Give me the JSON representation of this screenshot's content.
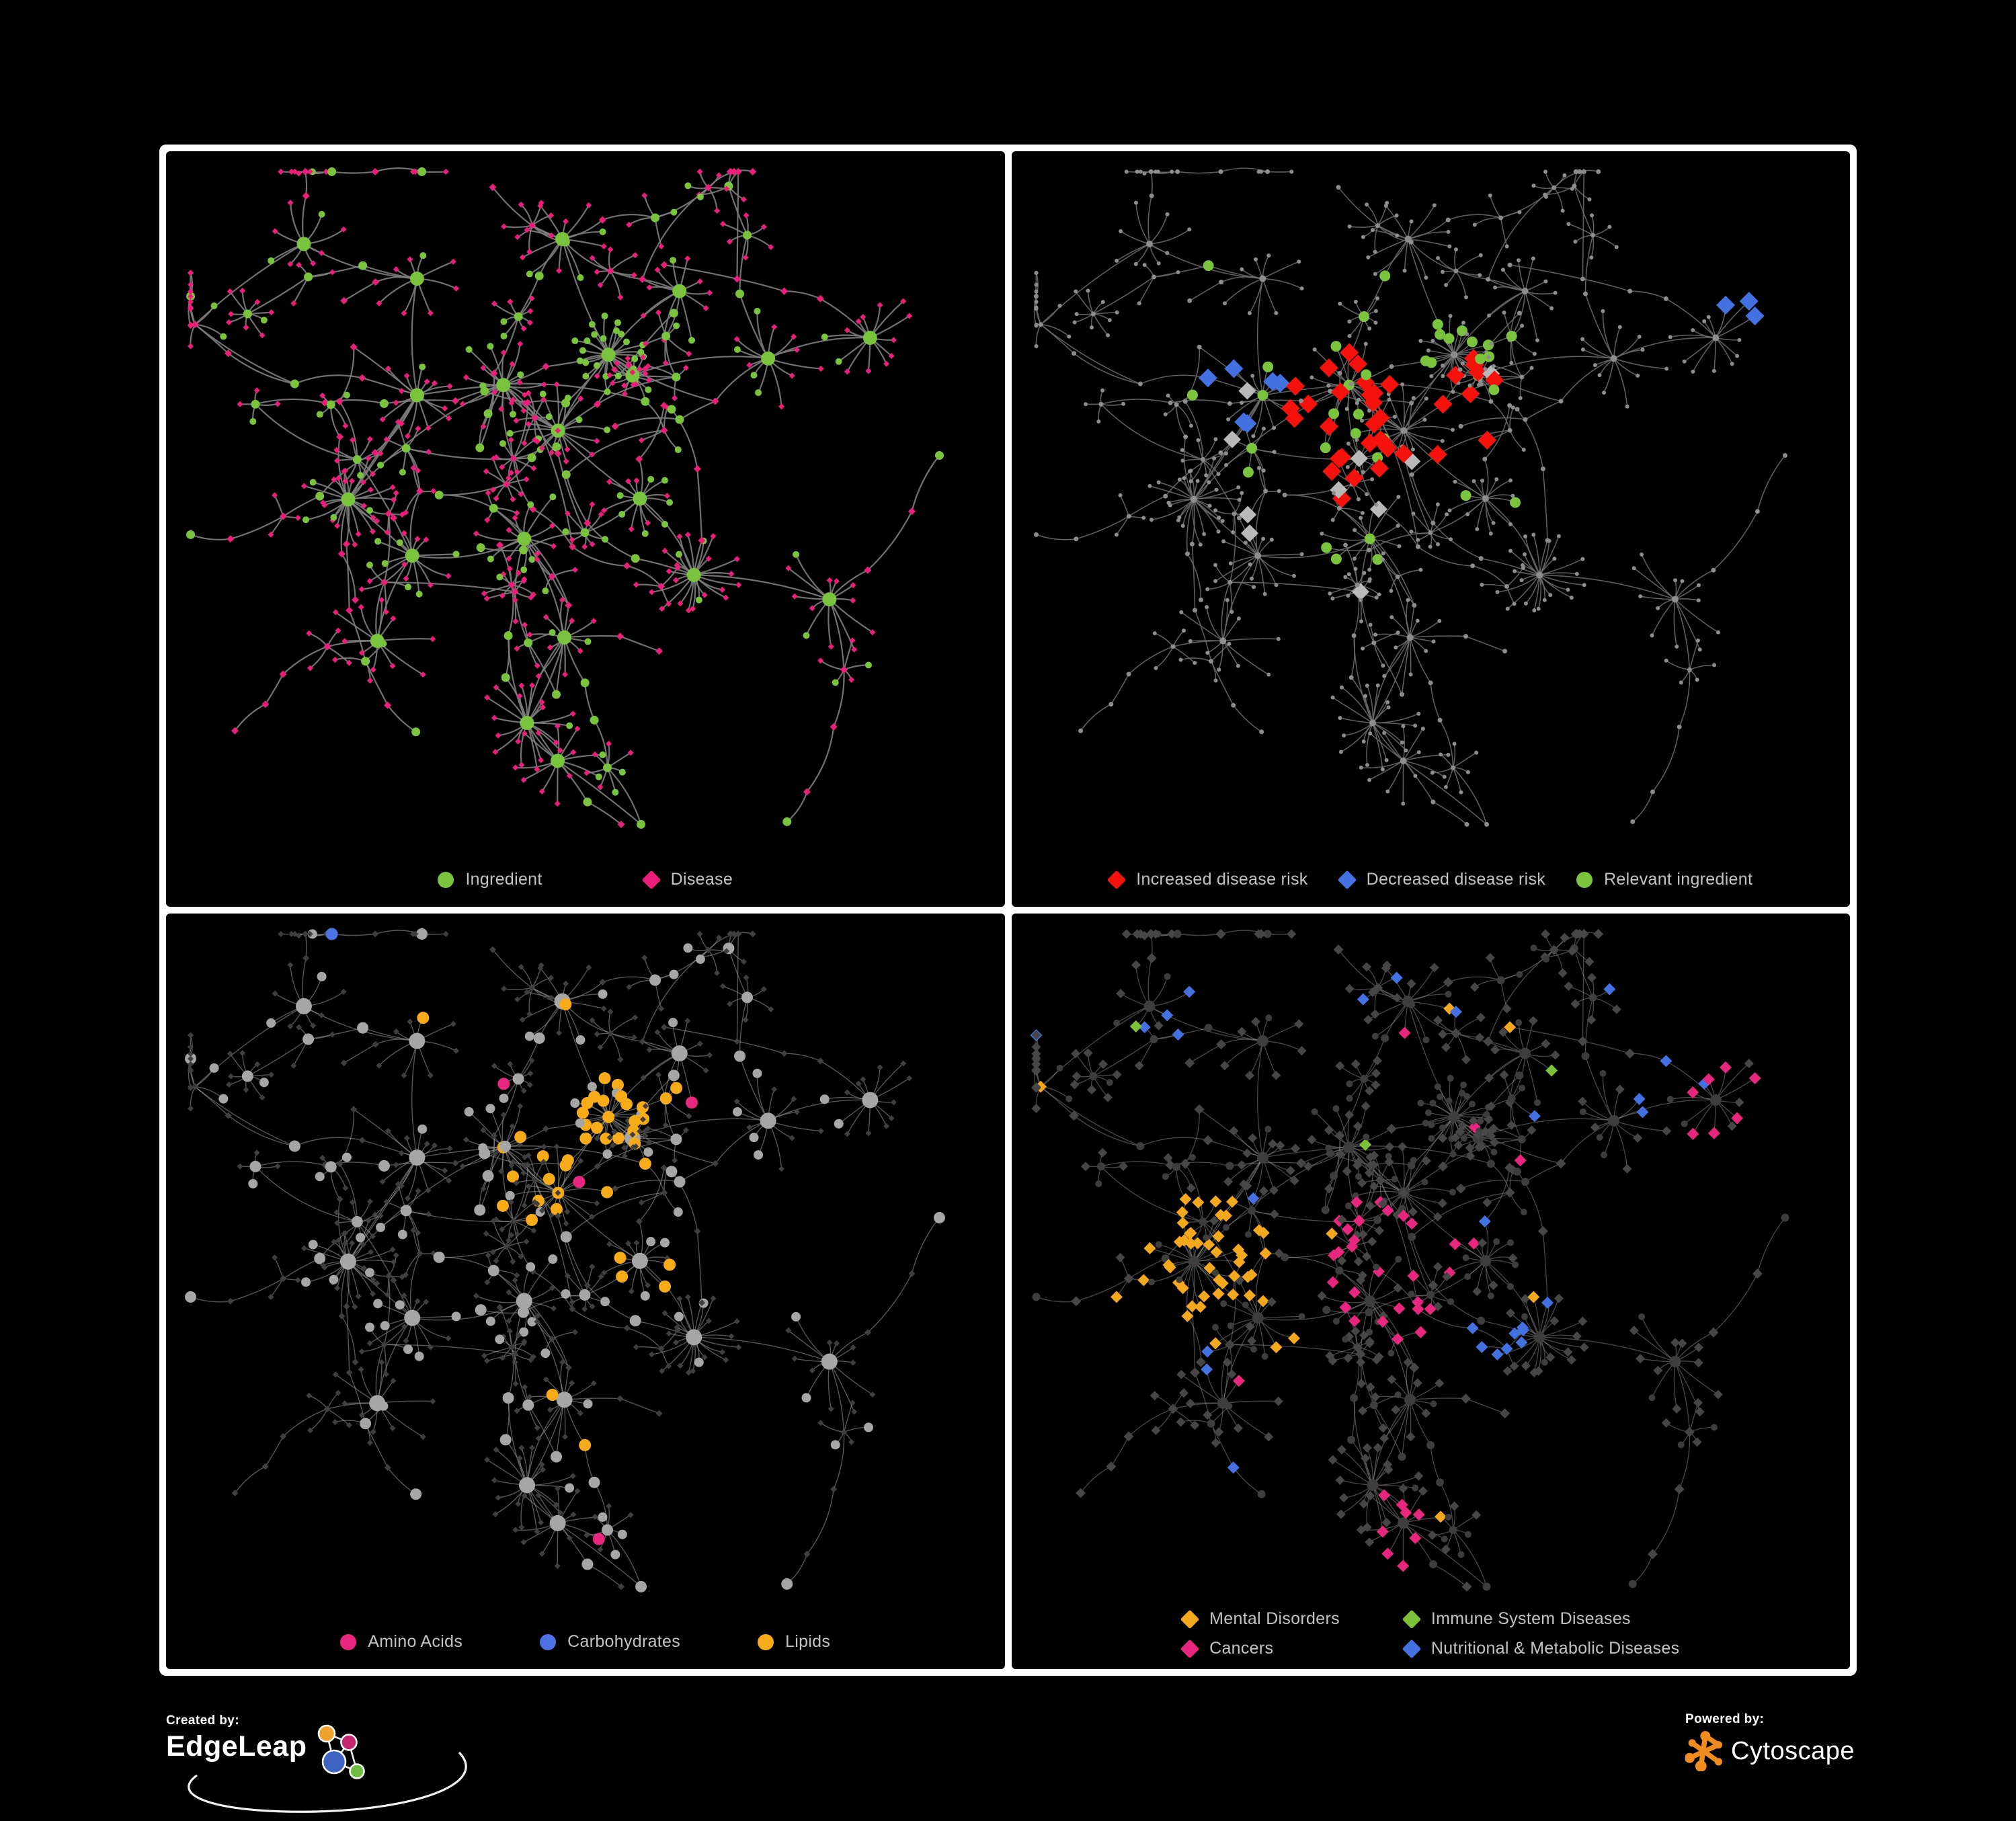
{
  "background": "#000000",
  "frame_color": "#ffffff",
  "panels": [
    {
      "id": "ingredient-disease",
      "legend_gap": 150,
      "columns": 1,
      "legend": [
        {
          "shape": "circle",
          "color": "#7ac43d",
          "label": "Ingredient"
        },
        {
          "shape": "diamond",
          "color": "#ec1e79",
          "label": "Disease"
        }
      ]
    },
    {
      "id": "disease-risk",
      "legend_gap": 46,
      "columns": 1,
      "legend": [
        {
          "shape": "diamond",
          "color": "#f5120c",
          "label": "Increased disease risk"
        },
        {
          "shape": "diamond",
          "color": "#4371e1",
          "label": "Decreased disease risk"
        },
        {
          "shape": "circle",
          "color": "#7ac43d",
          "label": "Relevant ingredient"
        }
      ]
    },
    {
      "id": "nutrient-classes",
      "legend_gap": 115,
      "columns": 1,
      "legend": [
        {
          "shape": "circle",
          "color": "#e9267d",
          "label": "Amino Acids"
        },
        {
          "shape": "circle",
          "color": "#4b72e3",
          "label": "Carbohydrates"
        },
        {
          "shape": "circle",
          "color": "#f8ab18",
          "label": "Lipids"
        }
      ]
    },
    {
      "id": "disease-categories",
      "legend_gap": 95,
      "columns": 2,
      "legend": [
        {
          "shape": "diamond",
          "color": "#f3a81e",
          "label": "Mental Disorders"
        },
        {
          "shape": "diamond",
          "color": "#7dc138",
          "label": "Immune System Diseases"
        },
        {
          "shape": "diamond",
          "color": "#e9267d",
          "label": "Cancers"
        },
        {
          "shape": "diamond",
          "color": "#4371e1",
          "label": "Nutritional & Metabolic Diseases"
        }
      ]
    }
  ],
  "footer": {
    "created_by": {
      "label": "Created by:",
      "brand": "EdgeLeap"
    },
    "powered_by": {
      "label": "Powered by:",
      "brand": "Cytoscape"
    }
  },
  "chart_data": {
    "type": "network",
    "description": "Same ingredient-disease interaction network rendered four times with different colorings: (1) node type, (2) disease-risk evidence, (3) ingredient nutrient class, (4) disease category.",
    "generator": {
      "seed": 1337,
      "view": [
        1223,
        1020
      ],
      "aspect": 1.2,
      "leaf_dist": 0.042,
      "step_dist": 0.052,
      "substar_p": 0.3,
      "branch_ing_p": 0.4,
      "substar_ing_p": 0.15,
      "cross_links": 26,
      "extra_hub_links": 4,
      "hubs": [
        [
          0.47,
          0.4,
          0.45,
          1.0,
          16,
          3
        ],
        [
          0.525,
          0.285,
          0.85,
          0.75,
          26,
          2
        ],
        [
          0.558,
          0.318,
          0.05,
          0.45,
          16,
          1
        ],
        [
          0.4,
          0.33,
          0.25,
          1.0,
          14,
          3
        ],
        [
          0.295,
          0.345,
          0.15,
          0.9,
          14,
          2
        ],
        [
          0.21,
          0.5,
          0.12,
          0.95,
          24,
          3
        ],
        [
          0.29,
          0.58,
          0.2,
          1.0,
          12,
          2
        ],
        [
          0.25,
          0.7,
          0.1,
          1.1,
          10,
          2
        ],
        [
          0.425,
          0.55,
          0.3,
          1.0,
          12,
          3
        ],
        [
          0.565,
          0.5,
          0.15,
          0.9,
          14,
          2
        ],
        [
          0.635,
          0.61,
          0.12,
          0.9,
          22,
          2
        ],
        [
          0.475,
          0.7,
          0.15,
          1.0,
          10,
          2
        ],
        [
          0.43,
          0.82,
          0.08,
          1.0,
          18,
          1
        ],
        [
          0.72,
          0.295,
          0.1,
          1.1,
          12,
          2
        ],
        [
          0.85,
          0.26,
          0.15,
          1.0,
          13,
          1
        ],
        [
          0.8,
          0.64,
          0.1,
          1.1,
          12,
          2
        ],
        [
          0.475,
          0.115,
          0.3,
          1.0,
          10,
          2
        ],
        [
          0.3,
          0.175,
          0.2,
          1.1,
          8,
          2
        ],
        [
          0.615,
          0.195,
          0.3,
          1.0,
          10,
          2
        ],
        [
          0.16,
          0.13,
          0.2,
          1.0,
          8,
          1
        ],
        [
          0.47,
          0.88,
          0.07,
          0.9,
          12,
          1
        ]
      ]
    },
    "panel_styles": [
      {
        "edge": {
          "color": "#7d7d7d",
          "width": 2.2,
          "opacity": 0.9
        },
        "circle": {
          "color": "#7ac43d",
          "radii": [
            5,
            6.5,
            10.5
          ]
        },
        "diamond": {
          "color": "#ec1e79",
          "radii": [
            4.5,
            5.5,
            6.5
          ]
        },
        "overrides": []
      },
      {
        "edge": {
          "color": "#6d6d6d",
          "width": 1.6,
          "opacity": 0.85
        },
        "uniform": {
          "color": "#8d8d8d",
          "radii": [
            3,
            3.5,
            5
          ]
        },
        "overrides": [
          {
            "target": "d",
            "shape": "diamond",
            "color": "#f5120c",
            "size": 14,
            "regions": [
              [
                0.47,
                0.38,
                0.16,
                0.45
              ],
              [
                0.6,
                0.5,
                0.08,
                0.3
              ],
              [
                0.78,
                0.77,
                0.09,
                0.3
              ]
            ],
            "sprinkle": 0.006,
            "max": 36
          },
          {
            "target": "d",
            "shape": "diamond",
            "color": "#4371e1",
            "size": 14,
            "regions": [
              [
                0.28,
                0.33,
                0.06,
                0.7
              ],
              [
                0.88,
                0.19,
                0.045,
                0.95
              ]
            ],
            "sprinkle": 0.0,
            "max": 13
          },
          {
            "target": "d",
            "shape": "diamond",
            "color": "#b9b9b9",
            "size": 13,
            "regions": [
              [
                0.44,
                0.42,
                0.22,
                0.07
              ],
              [
                0.64,
                0.52,
                0.1,
                0.2
              ]
            ],
            "sprinkle": 0.003,
            "max": 10
          },
          {
            "target": "i",
            "shape": "circle",
            "color": "#7ac43d",
            "size": 8,
            "regions": [
              [
                0.45,
                0.38,
                0.22,
                0.25
              ],
              [
                0.25,
                0.34,
                0.12,
                0.3
              ]
            ],
            "sprinkle": 0.012,
            "max": 42
          }
        ]
      },
      {
        "edge": {
          "color": "#9c9c9c",
          "width": 1.4,
          "opacity": 0.55
        },
        "circle": {
          "color": "#a6a6a6",
          "radii": [
            7,
            8.5,
            12
          ]
        },
        "diamond": {
          "color": "#3f3f3f",
          "radii": [
            4.5,
            5,
            5.5
          ]
        },
        "overrides": [
          {
            "target": "i",
            "shape": "circle",
            "color": "#f8ab18",
            "size": 9,
            "regions": [
              [
                0.525,
                0.29,
                0.1,
                0.7
              ],
              [
                0.45,
                0.4,
                0.09,
                0.4
              ],
              [
                0.57,
                0.52,
                0.05,
                0.5
              ]
            ],
            "sprinkle": 0.035,
            "max": 80
          },
          {
            "target": "i",
            "shape": "circle",
            "color": "#4b72e3",
            "size": 9,
            "regions": [
              [
                0.53,
                0.27,
                0.07,
                0.3
              ]
            ],
            "sprinkle": 0.012,
            "max": 16
          },
          {
            "target": "i",
            "shape": "circle",
            "color": "#e9267d",
            "size": 9,
            "regions": [],
            "sprinkle": 0.045,
            "max": 26
          }
        ]
      },
      {
        "edge": {
          "color": "#8f8f8f",
          "width": 1.3,
          "opacity": 0.5
        },
        "circle": {
          "color": "#3d3d3d",
          "radii": [
            5,
            6,
            8.5
          ]
        },
        "diamond": {
          "color": "#464646",
          "radii": [
            7,
            7.5,
            8.5
          ]
        },
        "overrides": [
          {
            "target": "d",
            "shape": "diamond",
            "color": "#f3a81e",
            "size": 9,
            "regions": [
              [
                0.21,
                0.5,
                0.11,
                0.9
              ],
              [
                0.285,
                0.58,
                0.07,
                0.35
              ]
            ],
            "sprinkle": 0.01,
            "max": 95
          },
          {
            "target": "d",
            "shape": "diamond",
            "color": "#e9267d",
            "size": 9,
            "regions": [
              [
                0.47,
                0.52,
                0.1,
                0.55
              ],
              [
                0.43,
                0.42,
                0.06,
                0.3
              ],
              [
                0.85,
                0.27,
                0.06,
                0.5
              ],
              [
                0.47,
                0.88,
                0.06,
                0.35
              ]
            ],
            "sprinkle": 0.012,
            "max": 65
          },
          {
            "target": "d",
            "shape": "diamond",
            "color": "#4371e1",
            "size": 9,
            "regions": [
              [
                0.57,
                0.6,
                0.06,
                0.75
              ],
              [
                0.72,
                0.3,
                0.12,
                0.25
              ],
              [
                0.47,
                0.09,
                0.1,
                0.3
              ],
              [
                0.82,
                0.42,
                0.1,
                0.35
              ],
              [
                0.17,
                0.12,
                0.08,
                0.5
              ],
              [
                0.3,
                0.85,
                0.09,
                0.25
              ]
            ],
            "sprinkle": 0.03,
            "max": 100
          },
          {
            "target": "d",
            "shape": "diamond",
            "color": "#7dc138",
            "size": 9,
            "regions": [],
            "sprinkle": 0.008,
            "max": 9
          }
        ]
      }
    ]
  }
}
